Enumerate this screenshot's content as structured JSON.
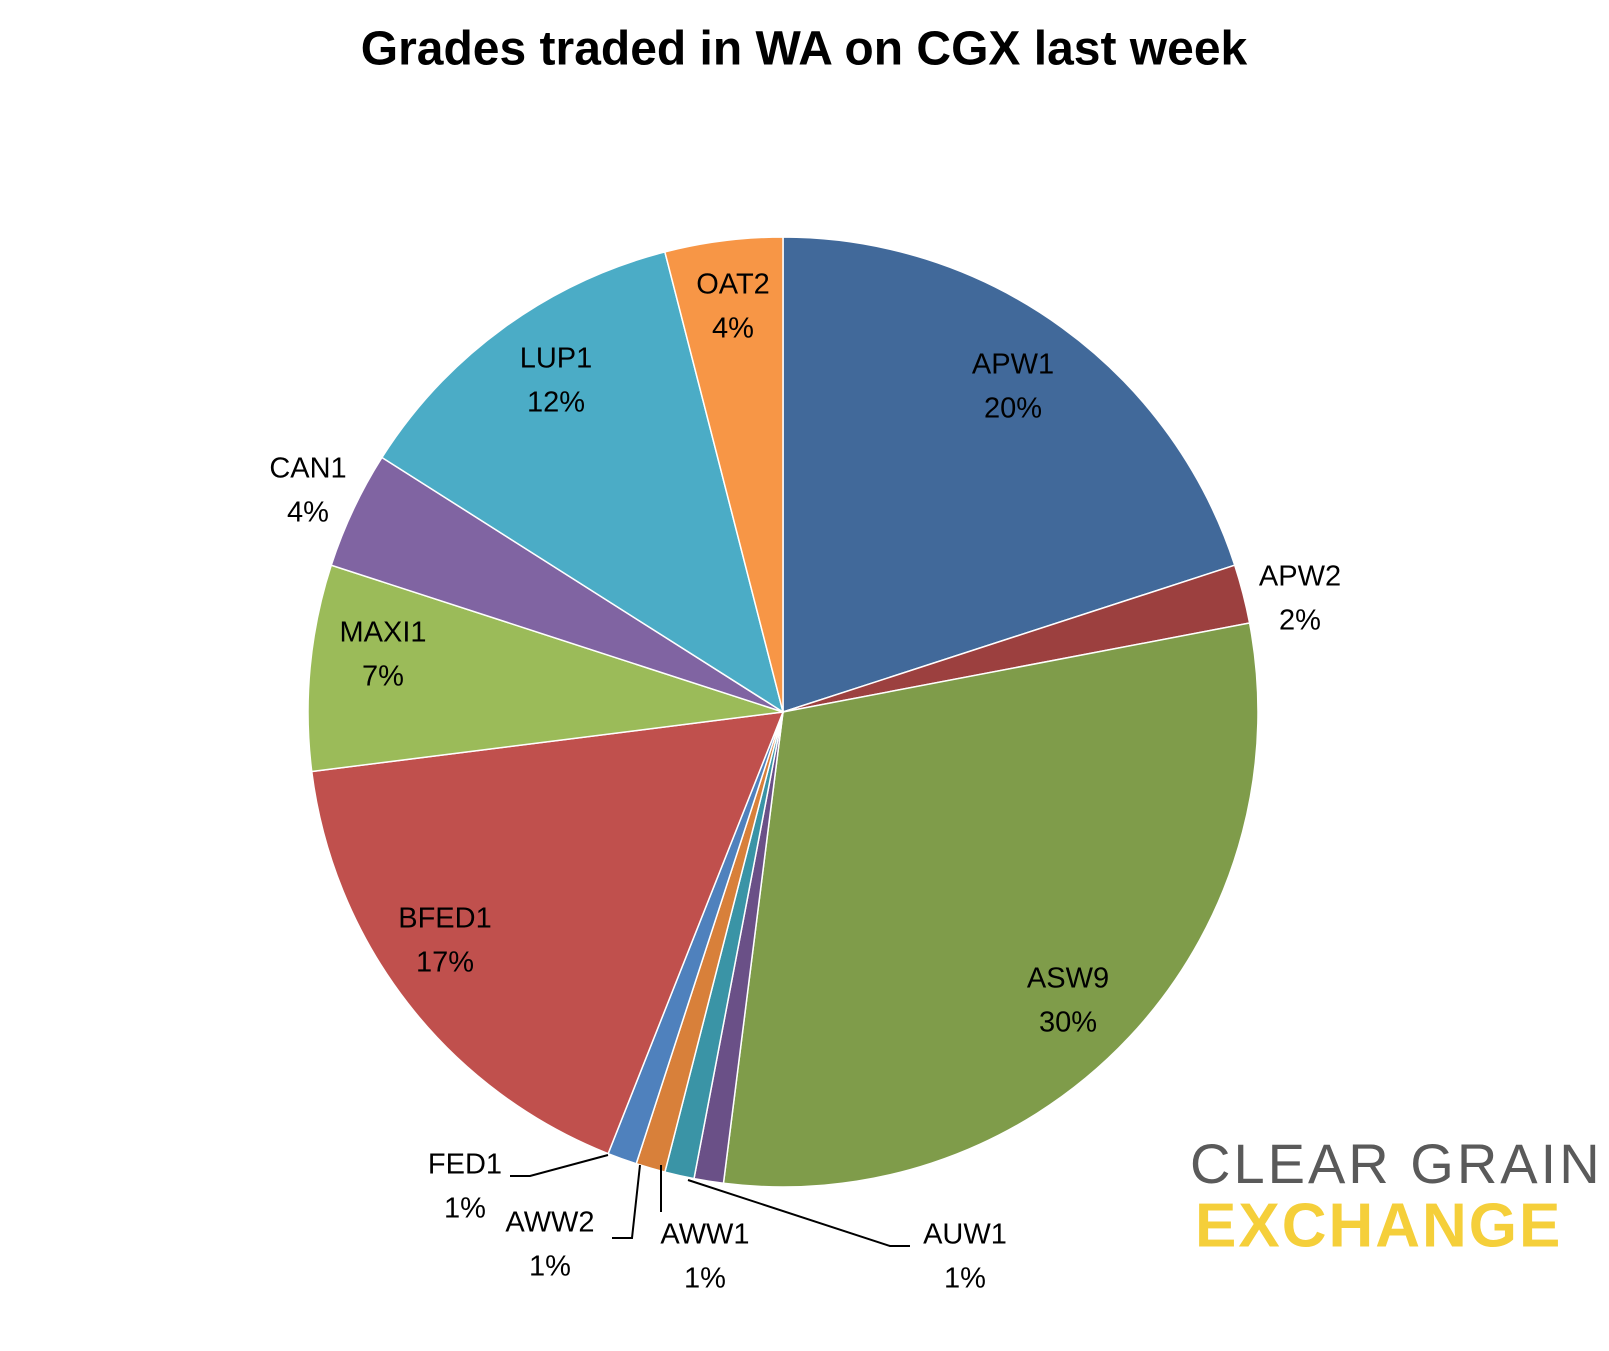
{
  "chart_data": {
    "type": "pie",
    "title": "Grades traded in WA on CGX last week",
    "categories": [
      "APW1",
      "APW2",
      "ASW9",
      "AUW1",
      "AWW1",
      "AWW2",
      "FED1",
      "BFED1",
      "MAXI1",
      "CAN1",
      "LUP1",
      "OAT2"
    ],
    "values": [
      20,
      2,
      30,
      1,
      1,
      1,
      1,
      17,
      7,
      4,
      12,
      4
    ],
    "value_labels": [
      "20%",
      "2%",
      "30%",
      "1%",
      "1%",
      "1%",
      "1%",
      "17%",
      "7%",
      "4%",
      "12%",
      "4%"
    ],
    "colors": [
      "#41699a",
      "#9c403f",
      "#7f9c4a",
      "#6a5087",
      "#3a94a6",
      "#d8803a",
      "#4f81bd",
      "#c0504d",
      "#9bbb59",
      "#8064a2",
      "#4bacc6",
      "#f79646"
    ],
    "logo": {
      "line1": "CLEAR GRAIN",
      "line2": "EXCHANGE"
    }
  }
}
